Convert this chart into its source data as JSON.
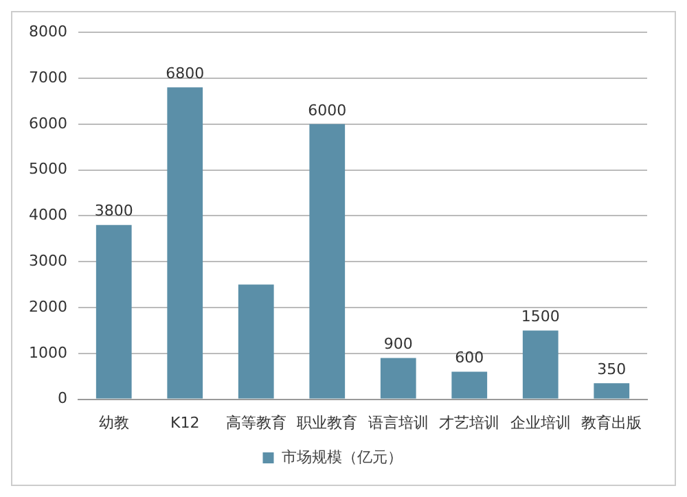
{
  "chart_data": {
    "type": "bar",
    "categories": [
      "幼教",
      "K12",
      "高等教育",
      "职业教育",
      "语言培训",
      "才艺培训",
      "企业培训",
      "教育出版"
    ],
    "series": [
      {
        "name": "市场规模（亿元）",
        "color": "#5b8fa8",
        "values": [
          3800,
          6800,
          2500,
          6000,
          900,
          600,
          1500,
          350
        ],
        "value_labels": [
          "3800",
          "6800",
          null,
          "6000",
          "900",
          "600",
          "1500",
          "350"
        ]
      }
    ],
    "ylim": [
      0,
      8000
    ],
    "yticks": [
      0,
      1000,
      2000,
      3000,
      4000,
      5000,
      6000,
      7000,
      8000
    ],
    "grid": "y",
    "legend": "bottom"
  }
}
